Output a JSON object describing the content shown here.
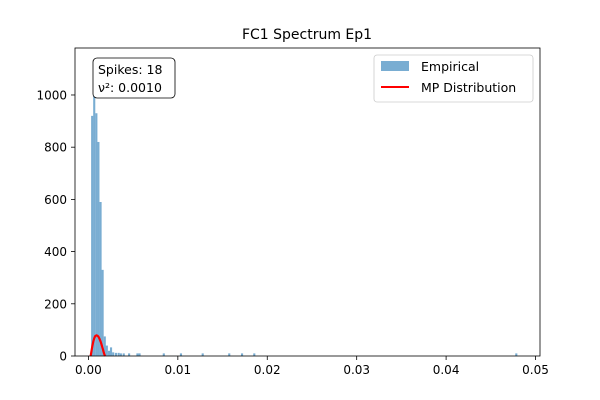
{
  "chart_data": {
    "type": "bar",
    "title": "FC1 Spectrum Ep1",
    "xlabel": "",
    "ylabel": "",
    "xlim": [
      -0.0015,
      0.0505
    ],
    "ylim": [
      0,
      1180
    ],
    "xticks": [
      0.0,
      0.01,
      0.02,
      0.03,
      0.04,
      0.05
    ],
    "xtick_labels": [
      "0.00",
      "0.01",
      "0.02",
      "0.03",
      "0.04",
      "0.05"
    ],
    "yticks": [
      0,
      200,
      400,
      600,
      800,
      1000
    ],
    "ytick_labels": [
      "0",
      "200",
      "400",
      "600",
      "800",
      "1000"
    ],
    "grid": false,
    "legend": {
      "position": "top-right",
      "entries": [
        "Empirical",
        "MP Distribution"
      ]
    },
    "annotation": {
      "lines": [
        "Spikes: 18",
        "ν²: 0.0010"
      ]
    },
    "series": [
      {
        "name": "Empirical",
        "kind": "histogram",
        "color": "#1f77b4",
        "alpha": 0.6,
        "bin_width": 0.000235,
        "bins": [
          {
            "x": 0.00042,
            "count": 920
          },
          {
            "x": 0.00065,
            "count": 1000
          },
          {
            "x": 0.00089,
            "count": 930
          },
          {
            "x": 0.00112,
            "count": 820
          },
          {
            "x": 0.00136,
            "count": 590
          },
          {
            "x": 0.00159,
            "count": 330
          },
          {
            "x": 0.00183,
            "count": 75
          },
          {
            "x": 0.00206,
            "count": 40
          },
          {
            "x": 0.0023,
            "count": 20
          },
          {
            "x": 0.00253,
            "count": 33
          },
          {
            "x": 0.00277,
            "count": 14
          },
          {
            "x": 0.00308,
            "count": 12
          },
          {
            "x": 0.00338,
            "count": 12
          },
          {
            "x": 0.00363,
            "count": 10
          },
          {
            "x": 0.00395,
            "count": 10
          },
          {
            "x": 0.00455,
            "count": 10
          },
          {
            "x": 0.00548,
            "count": 10
          },
          {
            "x": 0.00572,
            "count": 10
          },
          {
            "x": 0.00843,
            "count": 10
          },
          {
            "x": 0.01035,
            "count": 10
          },
          {
            "x": 0.01278,
            "count": 10
          },
          {
            "x": 0.01575,
            "count": 10
          },
          {
            "x": 0.01718,
            "count": 10
          },
          {
            "x": 0.01855,
            "count": 10
          },
          {
            "x": 0.04785,
            "count": 10
          }
        ]
      },
      {
        "name": "MP Distribution",
        "kind": "line",
        "color": "#ff0000",
        "points": [
          [
            0.00025,
            0
          ],
          [
            0.00035,
            20
          ],
          [
            0.00045,
            40
          ],
          [
            0.00055,
            56
          ],
          [
            0.00065,
            68
          ],
          [
            0.00075,
            76
          ],
          [
            0.00088,
            79
          ],
          [
            0.001,
            78
          ],
          [
            0.00112,
            74
          ],
          [
            0.00125,
            65
          ],
          [
            0.00138,
            54
          ],
          [
            0.0015,
            40
          ],
          [
            0.00162,
            26
          ],
          [
            0.00172,
            13
          ],
          [
            0.00182,
            3
          ],
          [
            0.00187,
            0
          ]
        ]
      }
    ]
  }
}
